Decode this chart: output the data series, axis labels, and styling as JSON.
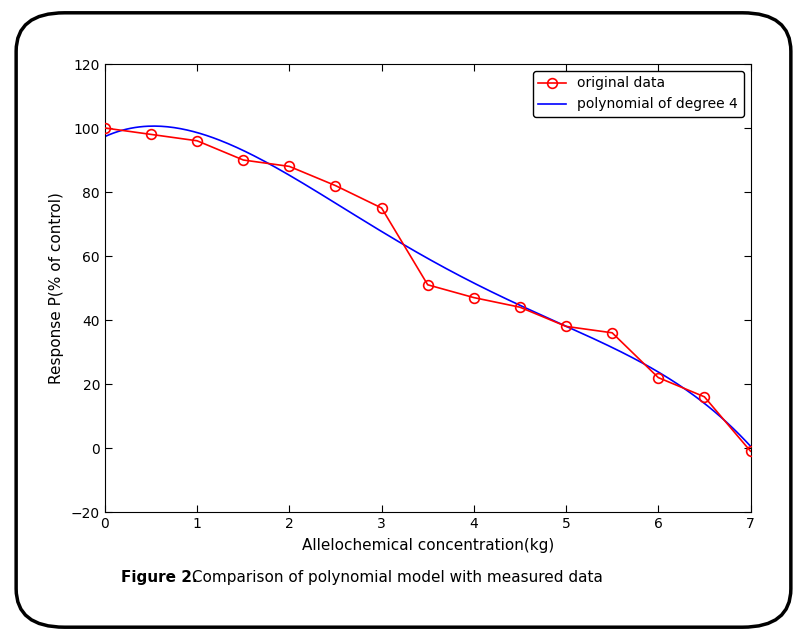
{
  "x_data": [
    0,
    0.5,
    1.0,
    1.5,
    2.0,
    2.5,
    3.0,
    3.5,
    4.0,
    4.5,
    5.0,
    5.5,
    6.0,
    6.5,
    7.0
  ],
  "y_data": [
    100,
    98,
    96,
    90,
    88,
    82,
    75,
    51,
    47,
    44,
    38,
    36,
    22,
    16,
    -1
  ],
  "xlim": [
    0,
    7
  ],
  "ylim": [
    -20,
    120
  ],
  "xticks": [
    0,
    1,
    2,
    3,
    4,
    5,
    6,
    7
  ],
  "yticks": [
    -20,
    0,
    20,
    40,
    60,
    80,
    100,
    120
  ],
  "xlabel": "Allelochemical concentration(kg)",
  "ylabel": "Response P(% of control)",
  "legend_data_label": "original data",
  "legend_poly_label": "polynomial of degree 4",
  "data_color": "#ff0000",
  "poly_color": "#0000ff",
  "marker": "o",
  "marker_size": 7,
  "line_width": 1.2,
  "figure_caption_bold": "Figure 2.",
  "figure_caption_normal": " Comparison of polynomial model with measured data",
  "background_color": "#ffffff",
  "poly_degree": 4
}
